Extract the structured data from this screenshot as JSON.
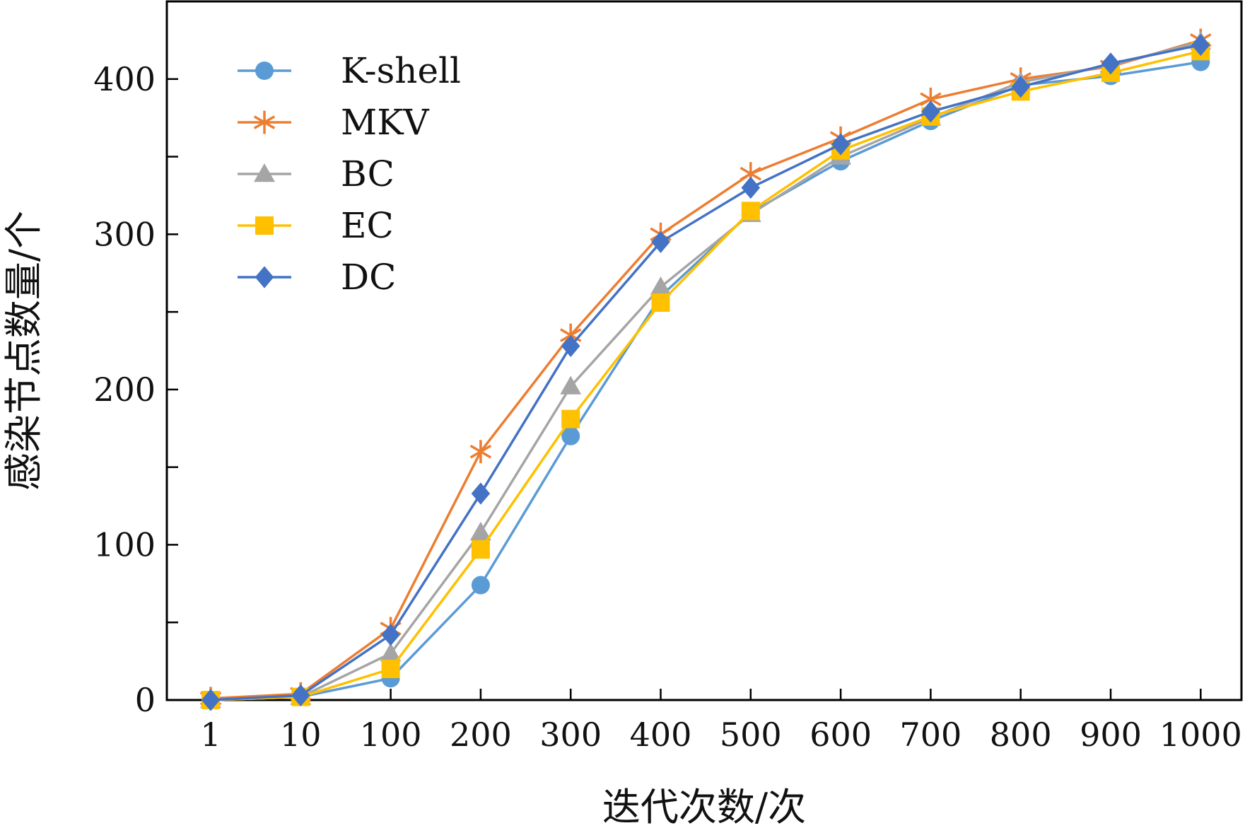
{
  "chart_data": {
    "type": "line",
    "xlabel": "迭代次数/次",
    "ylabel": "感染节点数量/个",
    "categories": [
      "1",
      "10",
      "100",
      "200",
      "300",
      "400",
      "500",
      "600",
      "700",
      "800",
      "900",
      "1000"
    ],
    "ylim": [
      0,
      450
    ],
    "yticks_major": [
      0,
      100,
      200,
      300,
      400
    ],
    "yticks_minor": [
      50,
      150,
      250,
      350
    ],
    "grid": false,
    "legend_position": "top-left",
    "series": [
      {
        "name": "K-shell",
        "color": "#5B9BD5",
        "marker": "circle",
        "values": [
          0,
          2,
          14,
          74,
          170,
          260,
          314,
          347,
          373,
          396,
          402,
          411
        ]
      },
      {
        "name": "MKV",
        "color": "#ED7D31",
        "marker": "asterisk",
        "values": [
          1,
          4,
          46,
          160,
          235,
          300,
          339,
          362,
          387,
          400,
          408,
          425
        ]
      },
      {
        "name": "BC",
        "color": "#A5A5A5",
        "marker": "triangle",
        "values": [
          0,
          2,
          30,
          108,
          202,
          266,
          313,
          350,
          375,
          398,
          409,
          424
        ]
      },
      {
        "name": "EC",
        "color": "#FFC000",
        "marker": "square",
        "values": [
          0,
          2,
          20,
          97,
          181,
          256,
          315,
          354,
          376,
          392,
          404,
          418
        ]
      },
      {
        "name": "DC",
        "color": "#4472C4",
        "marker": "diamond",
        "values": [
          0,
          3,
          42,
          133,
          228,
          295,
          330,
          358,
          379,
          395,
          410,
          422
        ]
      }
    ]
  }
}
